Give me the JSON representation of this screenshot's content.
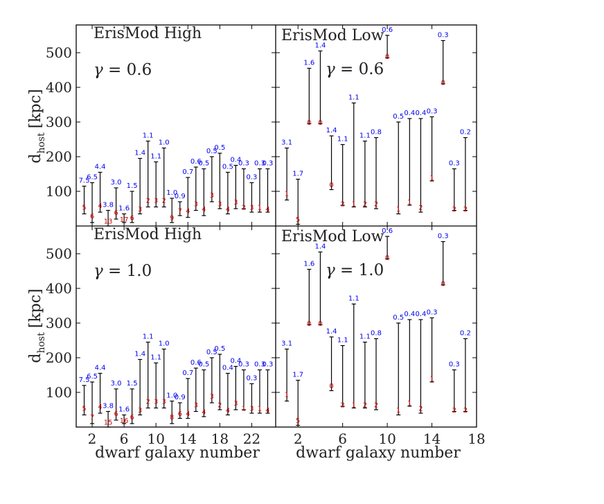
{
  "chart_data": {
    "type": "errorbar",
    "ylabel": "d",
    "ylabel_sub": "host",
    "ylabel_unit": "[kpc]",
    "xlabel": "dwarf galaxy number",
    "ylim": [
      0,
      580
    ],
    "yticks": [
      100,
      200,
      300,
      400,
      500
    ],
    "left_xlim": [
      0,
      25
    ],
    "left_xticks": [
      2,
      6,
      10,
      14,
      18,
      22
    ],
    "right_xlim": [
      0,
      18
    ],
    "right_xticks": [
      2,
      6,
      10,
      14,
      18
    ],
    "panels": [
      {
        "title": "ErisMod High",
        "gamma_symbol": "γ",
        "gamma_text": " = 0.6",
        "side": "left",
        "row": 0,
        "points": [
          {
            "x": 1,
            "lo": 35,
            "hi": 115,
            "mid": 55,
            "top": "7.5",
            "bot": "5"
          },
          {
            "x": 2,
            "lo": 10,
            "hi": 125,
            "mid": 30,
            "top": "6.5",
            "bot": "6"
          },
          {
            "x": 3,
            "lo": 40,
            "hi": 155,
            "mid": 60,
            "top": "4.4",
            "bot": "4"
          },
          {
            "x": 4,
            "lo": 0,
            "hi": 45,
            "mid": 15,
            "top": "3.8",
            "bot": "13"
          },
          {
            "x": 5,
            "lo": 20,
            "hi": 110,
            "mid": 40,
            "top": "3.0",
            "bot": "6"
          },
          {
            "x": 6,
            "lo": 10,
            "hi": 35,
            "mid": 20,
            "top": "1.6",
            "bot": "17"
          },
          {
            "x": 7,
            "lo": 10,
            "hi": 100,
            "mid": 25,
            "top": "1.5",
            "bot": "6"
          },
          {
            "x": 8,
            "lo": 35,
            "hi": 195,
            "mid": 50,
            "top": "1.4",
            "bot": "3"
          },
          {
            "x": 9,
            "lo": 55,
            "hi": 245,
            "mid": 75,
            "top": "1.1",
            "bot": "2"
          },
          {
            "x": 10,
            "lo": 55,
            "hi": 185,
            "mid": 75,
            "top": "1.1",
            "bot": "3"
          },
          {
            "x": 11,
            "lo": 55,
            "hi": 225,
            "mid": 75,
            "top": "1.0",
            "bot": "2"
          },
          {
            "x": 12,
            "lo": 10,
            "hi": 80,
            "mid": 25,
            "top": "1.0",
            "bot": "9"
          },
          {
            "x": 13,
            "lo": 30,
            "hi": 70,
            "mid": 45,
            "top": "0.9",
            "bot": "7"
          },
          {
            "x": 14,
            "lo": 25,
            "hi": 140,
            "mid": 45,
            "top": "0.7",
            "bot": "4"
          },
          {
            "x": 15,
            "lo": 45,
            "hi": 170,
            "mid": 65,
            "top": "0.6",
            "bot": "3"
          },
          {
            "x": 16,
            "lo": 30,
            "hi": 165,
            "mid": 50,
            "top": "0.5",
            "bot": "4"
          },
          {
            "x": 17,
            "lo": 70,
            "hi": 200,
            "mid": 90,
            "top": "0.5",
            "bot": "3"
          },
          {
            "x": 18,
            "lo": 50,
            "hi": 210,
            "mid": 65,
            "top": "0.5",
            "bot": "3"
          },
          {
            "x": 19,
            "lo": 35,
            "hi": 155,
            "mid": 50,
            "top": "0.5",
            "bot": "4"
          },
          {
            "x": 20,
            "lo": 50,
            "hi": 175,
            "mid": 70,
            "top": "0.4",
            "bot": "3"
          },
          {
            "x": 21,
            "lo": 50,
            "hi": 165,
            "mid": 55,
            "top": "0.3",
            "bot": "2"
          },
          {
            "x": 22,
            "lo": 40,
            "hi": 125,
            "mid": 55,
            "top": "0.3",
            "bot": "3"
          },
          {
            "x": 23,
            "lo": 40,
            "hi": 165,
            "mid": 55,
            "top": "0.3",
            "bot": "1"
          },
          {
            "x": 24,
            "lo": 40,
            "hi": 165,
            "mid": 50,
            "top": "0.3",
            "bot": "4"
          }
        ]
      },
      {
        "title": "ErisMod Low",
        "gamma_symbol": "γ",
        "gamma_text": " = 0.6",
        "side": "right",
        "row": 0,
        "points": [
          {
            "x": 1,
            "lo": 75,
            "hi": 225,
            "mid": 95,
            "top": "3.1",
            "bot": "1"
          },
          {
            "x": 2,
            "lo": 5,
            "hi": 135,
            "mid": 20,
            "top": "1.7",
            "bot": "5"
          },
          {
            "x": 3,
            "lo": 295,
            "hi": 455,
            "mid": 300,
            "top": "1.6",
            "bot": "0"
          },
          {
            "x": 4,
            "lo": 295,
            "hi": 505,
            "mid": 300,
            "top": "1.4",
            "bot": "0"
          },
          {
            "x": 5,
            "lo": 105,
            "hi": 260,
            "mid": 120,
            "top": "1.4",
            "bot": "0"
          },
          {
            "x": 6,
            "lo": 60,
            "hi": 235,
            "mid": 65,
            "top": "1.1",
            "bot": "2"
          },
          {
            "x": 7,
            "lo": 55,
            "hi": 355,
            "mid": 65,
            "top": "1.1",
            "bot": "1"
          },
          {
            "x": 8,
            "lo": 55,
            "hi": 245,
            "mid": 65,
            "top": "1.1",
            "bot": "2"
          },
          {
            "x": 9,
            "lo": 50,
            "hi": 255,
            "mid": 65,
            "top": "0.8",
            "bot": "2"
          },
          {
            "x": 10,
            "lo": 485,
            "hi": 550,
            "mid": 490,
            "top": "0.6",
            "bot": "0"
          },
          {
            "x": 11,
            "lo": 35,
            "hi": 300,
            "mid": 50,
            "top": "0.5",
            "bot": "1"
          },
          {
            "x": 12,
            "lo": 60,
            "hi": 310,
            "mid": 70,
            "top": "0.4",
            "bot": "1"
          },
          {
            "x": 13,
            "lo": 40,
            "hi": 310,
            "mid": 55,
            "top": "0.4",
            "bot": "2"
          },
          {
            "x": 14,
            "lo": 130,
            "hi": 315,
            "mid": 140,
            "top": "0.3",
            "bot": "1"
          },
          {
            "x": 15,
            "lo": 410,
            "hi": 535,
            "mid": 415,
            "top": "0.3",
            "bot": "0"
          },
          {
            "x": 16,
            "lo": 45,
            "hi": 165,
            "mid": 50,
            "top": "0.3",
            "bot": "2"
          },
          {
            "x": 17,
            "lo": 45,
            "hi": 255,
            "mid": 50,
            "top": "0.2",
            "bot": "2"
          }
        ]
      },
      {
        "title": "ErisMod High",
        "gamma_symbol": "γ",
        "gamma_text": " = 1.0",
        "side": "left",
        "row": 1,
        "points": [
          {
            "x": 1,
            "lo": 35,
            "hi": 120,
            "mid": 55,
            "top": "7.5",
            "bot": "5"
          },
          {
            "x": 2,
            "lo": 10,
            "hi": 130,
            "mid": 30,
            "top": "6.5",
            "bot": "7"
          },
          {
            "x": 3,
            "lo": 40,
            "hi": 155,
            "mid": 60,
            "top": "4.4",
            "bot": "4"
          },
          {
            "x": 4,
            "lo": 0,
            "hi": 45,
            "mid": 15,
            "top": "3.8",
            "bot": "15"
          },
          {
            "x": 5,
            "lo": 20,
            "hi": 110,
            "mid": 40,
            "top": "3.0",
            "bot": "6"
          },
          {
            "x": 6,
            "lo": 10,
            "hi": 35,
            "mid": 20,
            "top": "1.6",
            "bot": "16"
          },
          {
            "x": 7,
            "lo": 10,
            "hi": 110,
            "mid": 30,
            "top": "1.5",
            "bot": "6"
          },
          {
            "x": 8,
            "lo": 35,
            "hi": 195,
            "mid": 50,
            "top": "1.4",
            "bot": "3"
          },
          {
            "x": 9,
            "lo": 55,
            "hi": 245,
            "mid": 75,
            "top": "1.1",
            "bot": "2"
          },
          {
            "x": 10,
            "lo": 55,
            "hi": 185,
            "mid": 75,
            "top": "1.1",
            "bot": "3"
          },
          {
            "x": 11,
            "lo": 55,
            "hi": 225,
            "mid": 75,
            "top": "1.0",
            "bot": "3"
          },
          {
            "x": 12,
            "lo": 10,
            "hi": 75,
            "mid": 30,
            "top": "1.0",
            "bot": "8"
          },
          {
            "x": 13,
            "lo": 25,
            "hi": 70,
            "mid": 40,
            "top": "0.9",
            "bot": "6"
          },
          {
            "x": 14,
            "lo": 25,
            "hi": 140,
            "mid": 40,
            "top": "0.7",
            "bot": "4"
          },
          {
            "x": 15,
            "lo": 45,
            "hi": 170,
            "mid": 65,
            "top": "0.6",
            "bot": "3"
          },
          {
            "x": 16,
            "lo": 30,
            "hi": 165,
            "mid": 45,
            "top": "0.5",
            "bot": "4"
          },
          {
            "x": 17,
            "lo": 70,
            "hi": 200,
            "mid": 90,
            "top": "0.5",
            "bot": "3"
          },
          {
            "x": 18,
            "lo": 50,
            "hi": 210,
            "mid": 65,
            "top": "0.5",
            "bot": "2"
          },
          {
            "x": 19,
            "lo": 35,
            "hi": 155,
            "mid": 50,
            "top": "0.4",
            "bot": "4"
          },
          {
            "x": 20,
            "lo": 50,
            "hi": 175,
            "mid": 70,
            "top": "0.4",
            "bot": "3"
          },
          {
            "x": 21,
            "lo": 50,
            "hi": 165,
            "mid": 55,
            "top": "0.3",
            "bot": "1"
          },
          {
            "x": 22,
            "lo": 40,
            "hi": 125,
            "mid": 55,
            "top": "0.3",
            "bot": "3"
          },
          {
            "x": 23,
            "lo": 40,
            "hi": 165,
            "mid": 55,
            "top": "0.3",
            "bot": "1"
          },
          {
            "x": 24,
            "lo": 40,
            "hi": 165,
            "mid": 50,
            "top": "0.3",
            "bot": "4"
          }
        ]
      },
      {
        "title": "ErisMod Low",
        "gamma_symbol": "γ",
        "gamma_text": " = 1.0",
        "side": "right",
        "row": 1,
        "points": [
          {
            "x": 1,
            "lo": 75,
            "hi": 225,
            "mid": 95,
            "top": "3.1",
            "bot": "1"
          },
          {
            "x": 2,
            "lo": 5,
            "hi": 135,
            "mid": 20,
            "top": "1.7",
            "bot": "5"
          },
          {
            "x": 3,
            "lo": 295,
            "hi": 455,
            "mid": 300,
            "top": "1.6",
            "bot": "0"
          },
          {
            "x": 4,
            "lo": 295,
            "hi": 505,
            "mid": 300,
            "top": "1.4",
            "bot": "0"
          },
          {
            "x": 5,
            "lo": 105,
            "hi": 260,
            "mid": 120,
            "top": "1.4",
            "bot": "0"
          },
          {
            "x": 6,
            "lo": 60,
            "hi": 235,
            "mid": 65,
            "top": "1.1",
            "bot": "2"
          },
          {
            "x": 7,
            "lo": 55,
            "hi": 355,
            "mid": 65,
            "top": "1.1",
            "bot": "1"
          },
          {
            "x": 8,
            "lo": 55,
            "hi": 245,
            "mid": 65,
            "top": "1.1",
            "bot": "2"
          },
          {
            "x": 9,
            "lo": 50,
            "hi": 255,
            "mid": 65,
            "top": "0.8",
            "bot": "2"
          },
          {
            "x": 10,
            "lo": 485,
            "hi": 550,
            "mid": 490,
            "top": "0.6",
            "bot": "0"
          },
          {
            "x": 11,
            "lo": 35,
            "hi": 300,
            "mid": 50,
            "top": "0.5",
            "bot": "1"
          },
          {
            "x": 12,
            "lo": 60,
            "hi": 310,
            "mid": 70,
            "top": "0.4",
            "bot": "1"
          },
          {
            "x": 13,
            "lo": 40,
            "hi": 310,
            "mid": 55,
            "top": "0.4",
            "bot": "2"
          },
          {
            "x": 14,
            "lo": 130,
            "hi": 315,
            "mid": 140,
            "top": "0.3",
            "bot": "1"
          },
          {
            "x": 15,
            "lo": 410,
            "hi": 535,
            "mid": 415,
            "top": "0.3",
            "bot": "0"
          },
          {
            "x": 16,
            "lo": 45,
            "hi": 165,
            "mid": 50,
            "top": "0.3",
            "bot": "2"
          },
          {
            "x": 17,
            "lo": 45,
            "hi": 255,
            "mid": 50,
            "top": "0.2",
            "bot": "2"
          }
        ]
      }
    ]
  }
}
